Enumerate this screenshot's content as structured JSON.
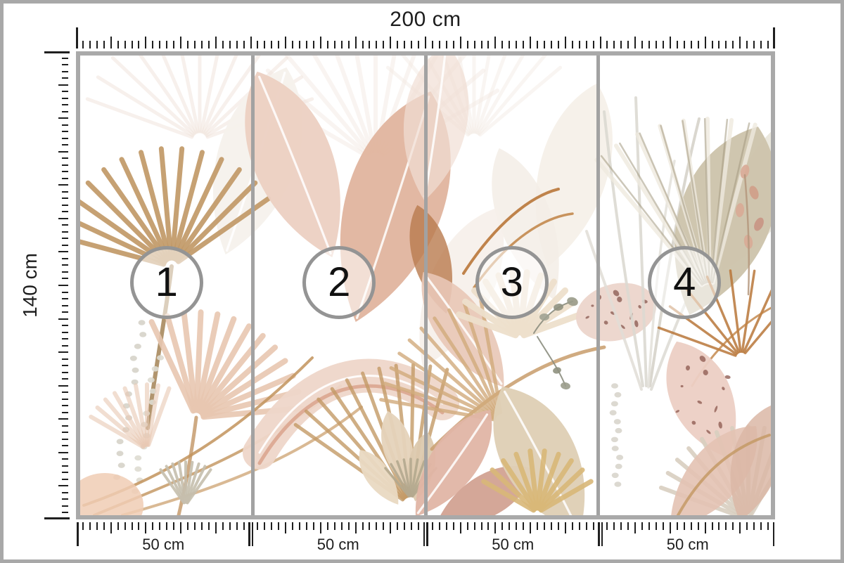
{
  "diagram": {
    "type": "wallpaper-panel-dimension-diagram",
    "top_ruler": {
      "label": "200 cm",
      "total_cm": 200,
      "minor_tick_cm": 2,
      "major_tick_cm": 10
    },
    "left_ruler": {
      "label": "140 cm",
      "total_cm": 140,
      "minor_tick_cm": 2,
      "major_tick_cm": 10
    },
    "bottom_ruler": {
      "segment_cm": 50,
      "minor_tick_cm": 2,
      "major_tick_cm": 10,
      "segment_labels": [
        "50 cm",
        "50 cm",
        "50 cm",
        "50 cm"
      ]
    },
    "panels": [
      {
        "number": "1"
      },
      {
        "number": "2"
      },
      {
        "number": "3"
      },
      {
        "number": "4"
      }
    ],
    "colors": {
      "frame": "#a8a8a8",
      "mural_border": "#a9a9a9",
      "divider": "#a2a2a2",
      "circle_stroke": "#949494",
      "tick": "#1f1f1f",
      "text": "#1d1d1d",
      "art_blush": "#e8c6b2",
      "art_tan": "#c2985f",
      "art_beige": "#ddd0b6",
      "art_rust": "#b9773a",
      "art_pale": "#dcd9d2",
      "art_speckle": "#8d5f56"
    }
  }
}
